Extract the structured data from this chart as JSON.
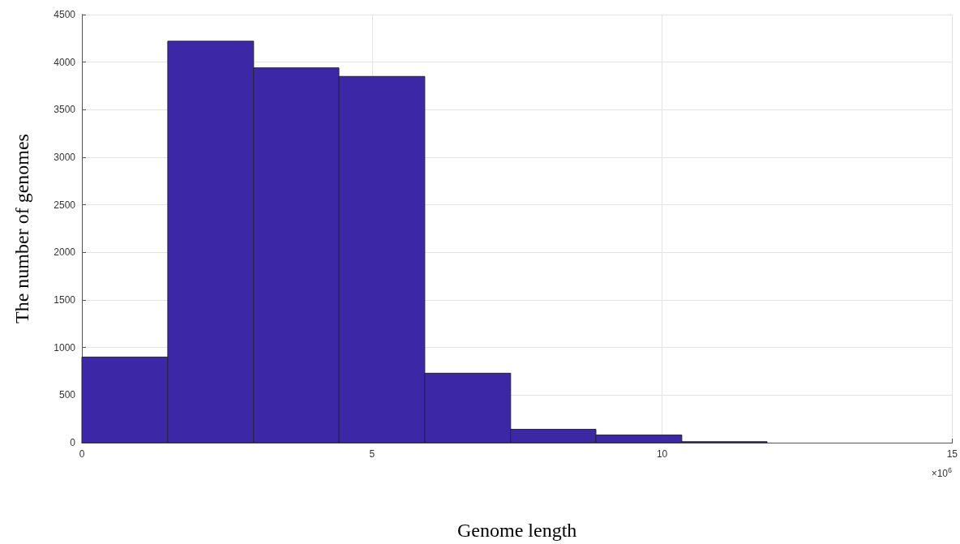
{
  "chart_data": {
    "type": "histogram",
    "xlabel": "Genome length",
    "ylabel": "The number of genomes",
    "bins": [
      0,
      1.48,
      2.96,
      4.43,
      5.91,
      7.39,
      8.86,
      10.34,
      11.81
    ],
    "values": [
      900,
      4220,
      3940,
      3850,
      730,
      140,
      80,
      10
    ],
    "color": "#3c28a6",
    "xlim": [
      0,
      15
    ],
    "xticks": [
      0,
      5,
      10,
      15
    ],
    "ylim": [
      0,
      4500
    ],
    "yticks": [
      0,
      500,
      1000,
      1500,
      2000,
      2500,
      3000,
      3500,
      4000,
      4500
    ],
    "grid": true,
    "annotations": [
      "×10$^{6}$"
    ]
  }
}
